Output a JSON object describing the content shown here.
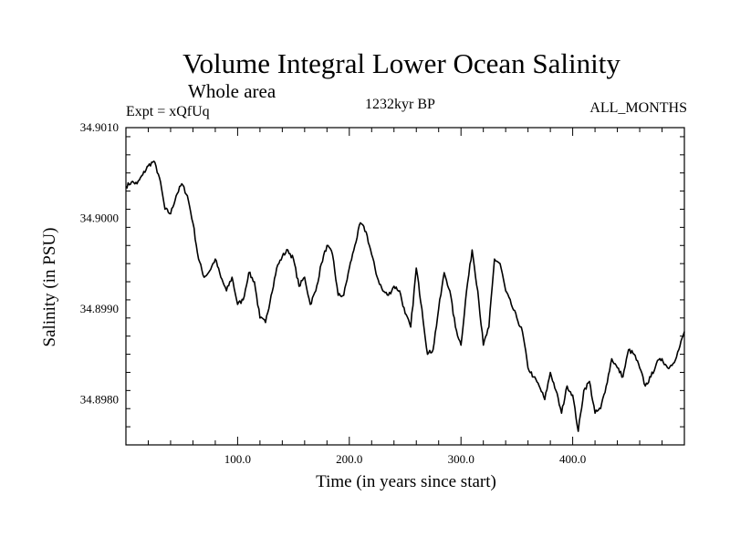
{
  "header": {
    "title": "Volume Integral Lower Ocean Salinity",
    "subtitle": "Whole area",
    "experiment": "Expt = xQfUq",
    "period": "1232kyr BP",
    "months": "ALL_MONTHS"
  },
  "chart_data": {
    "type": "line",
    "title": "Volume Integral Lower Ocean Salinity",
    "xlabel": "Time (in years since start)",
    "ylabel": "Salinity (in PSU)",
    "xlim": [
      0,
      500
    ],
    "ylim": [
      34.8975,
      34.901
    ],
    "xticks": [
      100,
      200,
      300,
      400
    ],
    "xtick_labels": [
      "100.0",
      "200.0",
      "300.0",
      "400.0"
    ],
    "yticks": [
      34.898,
      34.899,
      34.9,
      34.901
    ],
    "ytick_labels": [
      "34.8980",
      "34.8990",
      "34.9000",
      "34.9010"
    ],
    "series": [
      {
        "name": "Salinity",
        "x": [
          0,
          5,
          10,
          15,
          20,
          25,
          30,
          35,
          40,
          45,
          50,
          55,
          60,
          65,
          70,
          75,
          80,
          85,
          90,
          95,
          100,
          105,
          110,
          115,
          120,
          125,
          130,
          135,
          140,
          145,
          150,
          155,
          160,
          165,
          170,
          175,
          180,
          185,
          190,
          195,
          200,
          205,
          210,
          215,
          220,
          225,
          230,
          235,
          240,
          245,
          250,
          255,
          260,
          265,
          270,
          275,
          280,
          285,
          290,
          295,
          300,
          305,
          310,
          315,
          320,
          325,
          330,
          335,
          340,
          345,
          350,
          355,
          360,
          365,
          370,
          375,
          380,
          385,
          390,
          395,
          400,
          405,
          410,
          415,
          420,
          425,
          430,
          435,
          440,
          445,
          450,
          455,
          460,
          465,
          470,
          475,
          480,
          485,
          490,
          495,
          500
        ],
        "values": [
          34.90035,
          34.9004,
          34.90038,
          34.90048,
          34.90058,
          34.90063,
          34.90045,
          34.9001,
          34.90005,
          34.90025,
          34.90038,
          34.90025,
          34.89995,
          34.89955,
          34.89935,
          34.89942,
          34.89955,
          34.89935,
          34.8992,
          34.89935,
          34.89905,
          34.8991,
          34.8994,
          34.8993,
          34.8989,
          34.89885,
          34.89915,
          34.89945,
          34.89958,
          34.89965,
          34.89955,
          34.89925,
          34.89935,
          34.89905,
          34.8992,
          34.8995,
          34.8997,
          34.8996,
          34.89915,
          34.89915,
          34.89945,
          34.8997,
          34.89995,
          34.89985,
          34.8996,
          34.89935,
          34.8992,
          34.89915,
          34.89925,
          34.8992,
          34.89895,
          34.8988,
          34.89945,
          34.899,
          34.8985,
          34.89855,
          34.899,
          34.8994,
          34.8992,
          34.8988,
          34.8986,
          34.8992,
          34.89965,
          34.8992,
          34.8986,
          34.8988,
          34.89955,
          34.8995,
          34.8992,
          34.89905,
          34.8989,
          34.89875,
          34.89835,
          34.89825,
          34.89815,
          34.898,
          34.8983,
          34.8981,
          34.89785,
          34.89815,
          34.89805,
          34.89765,
          34.8981,
          34.8982,
          34.89785,
          34.8979,
          34.89815,
          34.89845,
          34.89835,
          34.89825,
          34.89855,
          34.8985,
          34.89835,
          34.89815,
          34.89825,
          34.8984,
          34.89845,
          34.89835,
          34.8984,
          34.89855,
          34.89875
        ]
      }
    ]
  }
}
